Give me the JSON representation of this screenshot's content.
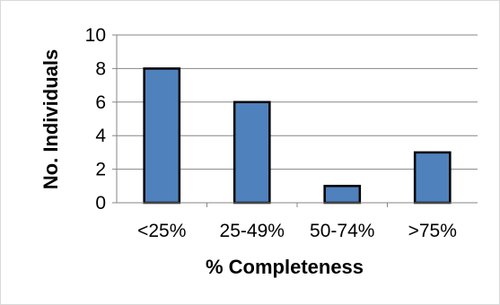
{
  "chart_data": {
    "type": "bar",
    "title": "",
    "xlabel": "% Completeness",
    "ylabel": "No. Individuals",
    "categories": [
      "<25%",
      "25-49%",
      "50-74%",
      ">75%"
    ],
    "values": [
      8,
      6,
      1,
      3
    ],
    "ylim": [
      0,
      10
    ],
    "yticks": [
      0,
      2,
      4,
      6,
      8,
      10
    ],
    "grid": true,
    "legend": "none",
    "colors": {
      "bar_fill": "#4f81bd",
      "bar_stroke": "#000000",
      "grid": "#868686",
      "axis": "#868686"
    }
  }
}
